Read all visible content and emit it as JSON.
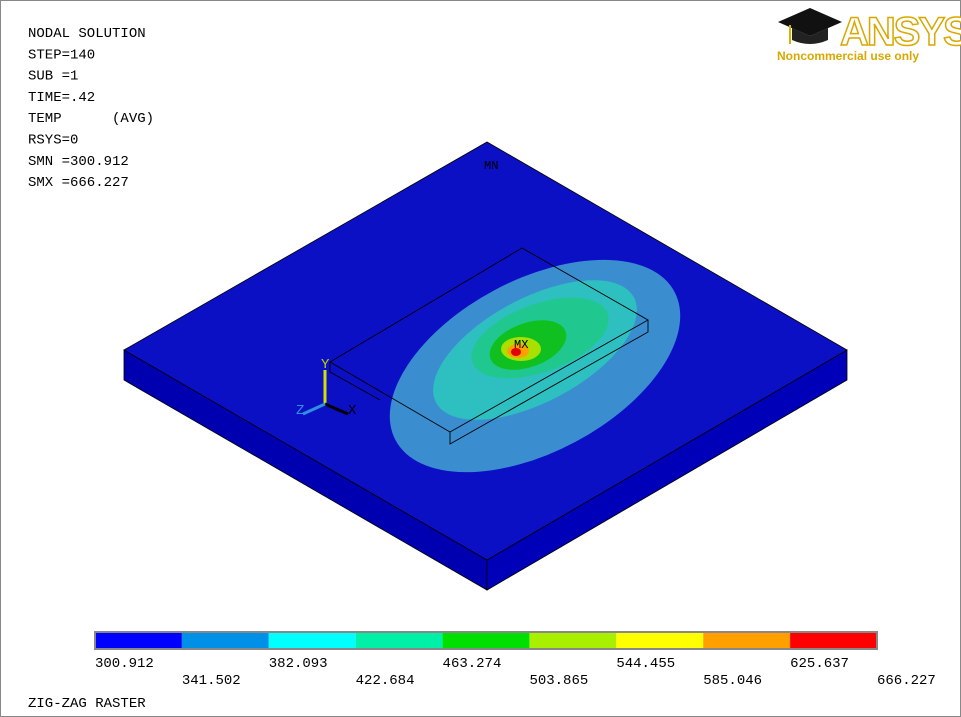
{
  "header": {
    "lines": [
      "NODAL SOLUTION",
      "STEP=140",
      "SUB =1",
      "TIME=.42",
      "TEMP      (AVG)",
      "RSYS=0",
      "SMN =300.912",
      "SMX =666.227"
    ]
  },
  "logo": {
    "brand": "ANSYS",
    "note": "Noncommercial use only"
  },
  "labels": {
    "min": "MN",
    "max": "MX",
    "axes": [
      "X",
      "Y",
      "Z"
    ]
  },
  "legend": {
    "colors": [
      "#0000ff",
      "#0090e8",
      "#00ffff",
      "#00f0a8",
      "#00e000",
      "#a8f000",
      "#ffff00",
      "#ffa000",
      "#ff0000"
    ],
    "values": [
      300.912,
      341.502,
      382.093,
      422.684,
      463.274,
      503.865,
      544.455,
      585.046,
      625.637,
      666.227
    ]
  },
  "footer": "ZIG-ZAG RASTER"
}
